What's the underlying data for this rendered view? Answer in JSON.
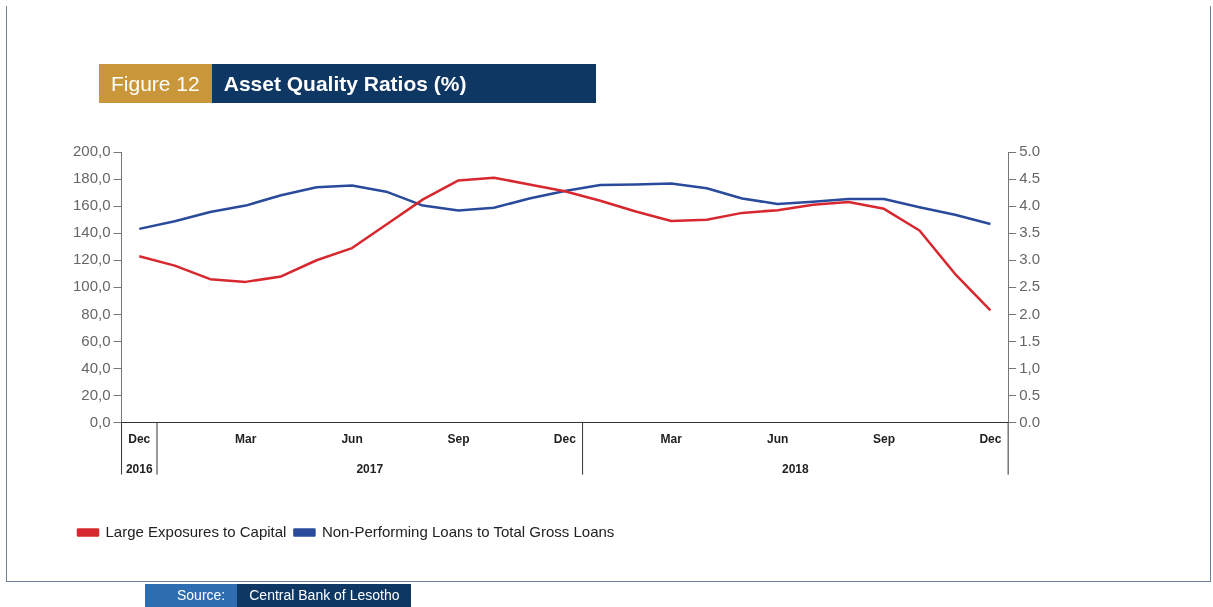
{
  "chart_data": {
    "type": "line",
    "subtitle": "Figure 12",
    "title": "Asset Quality Ratios (%)",
    "categories": [
      "Dec",
      null,
      null,
      "Mar",
      null,
      null,
      "Jun",
      null,
      null,
      "Sep",
      null,
      null,
      "Dec",
      null,
      null,
      "Mar",
      null,
      null,
      "Jun",
      null,
      null,
      "Sep",
      null,
      null,
      "Dec"
    ],
    "series": [
      {
        "name": "Large Exposures to Capital",
        "color": "#d7282f",
        "values": [
          123,
          116,
          106,
          104,
          108,
          120,
          129,
          147,
          165,
          179,
          181,
          176,
          171,
          164,
          156,
          149,
          150,
          155,
          157,
          161,
          163,
          158,
          142,
          110,
          83
        ]
      },
      {
        "name": "Non-Performing Loans to Total Gross Loans",
        "color": "#2a4a9b",
        "axis": "y2",
        "values": [
          3.58,
          3.72,
          3.89,
          4.01,
          4.2,
          4.35,
          4.38,
          4.26,
          4.01,
          3.92,
          3.97,
          4.14,
          4.28,
          4.39,
          4.4,
          4.42,
          4.33,
          4.14,
          4.04,
          4.08,
          4.13,
          4.13,
          3.98,
          3.84,
          3.67
        ]
      }
    ],
    "ylim": [
      0,
      200
    ],
    "yticks": [
      {
        "value": 0,
        "label": "0,0"
      },
      {
        "value": 20,
        "label": "20,0"
      },
      {
        "value": 40,
        "label": "40,0"
      },
      {
        "value": 60,
        "label": "60,0"
      },
      {
        "value": 80,
        "label": "80,0"
      },
      {
        "value": 100,
        "label": "100,0"
      },
      {
        "value": 120,
        "label": "120,0"
      },
      {
        "value": 140,
        "label": "140,0"
      },
      {
        "value": 160,
        "label": "160,0"
      },
      {
        "value": 180,
        "label": "180,0"
      },
      {
        "value": 200,
        "label": "200,0"
      }
    ],
    "y2lim": [
      0,
      5
    ],
    "y2ticks": [
      {
        "value": 0,
        "label": "0.0"
      },
      {
        "value": 0.5,
        "label": "0.5"
      },
      {
        "value": 1,
        "label": "1,0"
      },
      {
        "value": 1.5,
        "label": "1.5"
      },
      {
        "value": 2,
        "label": "2.0"
      },
      {
        "value": 2.5,
        "label": "2.5"
      },
      {
        "value": 3,
        "label": "3.0"
      },
      {
        "value": 3.5,
        "label": "3.5"
      },
      {
        "value": 4,
        "label": "4.0"
      },
      {
        "value": 4.5,
        "label": "4.5"
      },
      {
        "value": 5,
        "label": "5.0"
      }
    ],
    "grid": false,
    "legend": "bottom left",
    "marker": "none",
    "line_style": "solid",
    "annotations": [
      "2016",
      "2017",
      "2018",
      "Source:",
      "Central Bank of Lesotho"
    ]
  }
}
